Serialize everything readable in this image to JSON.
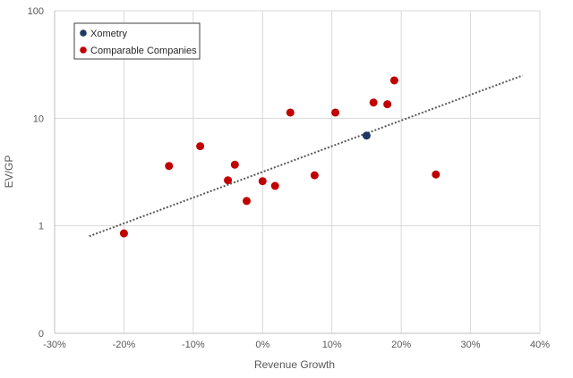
{
  "chart_data": {
    "type": "scatter",
    "title": "",
    "xlabel": "Revenue Growth",
    "ylabel": "EV/GP",
    "x_scale": "linear",
    "y_scale": "log",
    "xlim": [
      -0.3,
      0.4
    ],
    "ylim": [
      0.1,
      100
    ],
    "x_ticks": [
      {
        "value": -0.3,
        "label": "-30%"
      },
      {
        "value": -0.2,
        "label": "-20%"
      },
      {
        "value": -0.1,
        "label": "-10%"
      },
      {
        "value": 0.0,
        "label": "0%"
      },
      {
        "value": 0.1,
        "label": "10%"
      },
      {
        "value": 0.2,
        "label": "20%"
      },
      {
        "value": 0.3,
        "label": "30%"
      },
      {
        "value": 0.4,
        "label": "40%"
      }
    ],
    "y_ticks": [
      {
        "value": 0.1,
        "label": "0"
      },
      {
        "value": 1,
        "label": "1"
      },
      {
        "value": 10,
        "label": "10"
      },
      {
        "value": 100,
        "label": "100"
      }
    ],
    "grid": true,
    "legend_position": "top-left",
    "series": [
      {
        "name": "Xometry",
        "color": "#1f3864",
        "points": [
          {
            "x": 0.15,
            "y": 6.9
          }
        ]
      },
      {
        "name": "Comparable Companies",
        "color": "#c00000",
        "points": [
          {
            "x": -0.2,
            "y": 0.85
          },
          {
            "x": -0.135,
            "y": 3.6
          },
          {
            "x": -0.09,
            "y": 5.5
          },
          {
            "x": -0.05,
            "y": 2.65
          },
          {
            "x": -0.04,
            "y": 3.7
          },
          {
            "x": -0.023,
            "y": 1.7
          },
          {
            "x": 0.0,
            "y": 2.6
          },
          {
            "x": 0.018,
            "y": 2.35
          },
          {
            "x": 0.04,
            "y": 11.3
          },
          {
            "x": 0.075,
            "y": 2.95
          },
          {
            "x": 0.105,
            "y": 11.3
          },
          {
            "x": 0.16,
            "y": 14.0
          },
          {
            "x": 0.18,
            "y": 13.5
          },
          {
            "x": 0.19,
            "y": 22.5
          },
          {
            "x": 0.25,
            "y": 3.0
          }
        ]
      }
    ],
    "trendline": {
      "type": "exponential",
      "style": "dotted",
      "color": "#595959",
      "points": [
        {
          "x": -0.25,
          "y": 0.8
        },
        {
          "x": 0.375,
          "y": 25.0
        }
      ]
    }
  }
}
